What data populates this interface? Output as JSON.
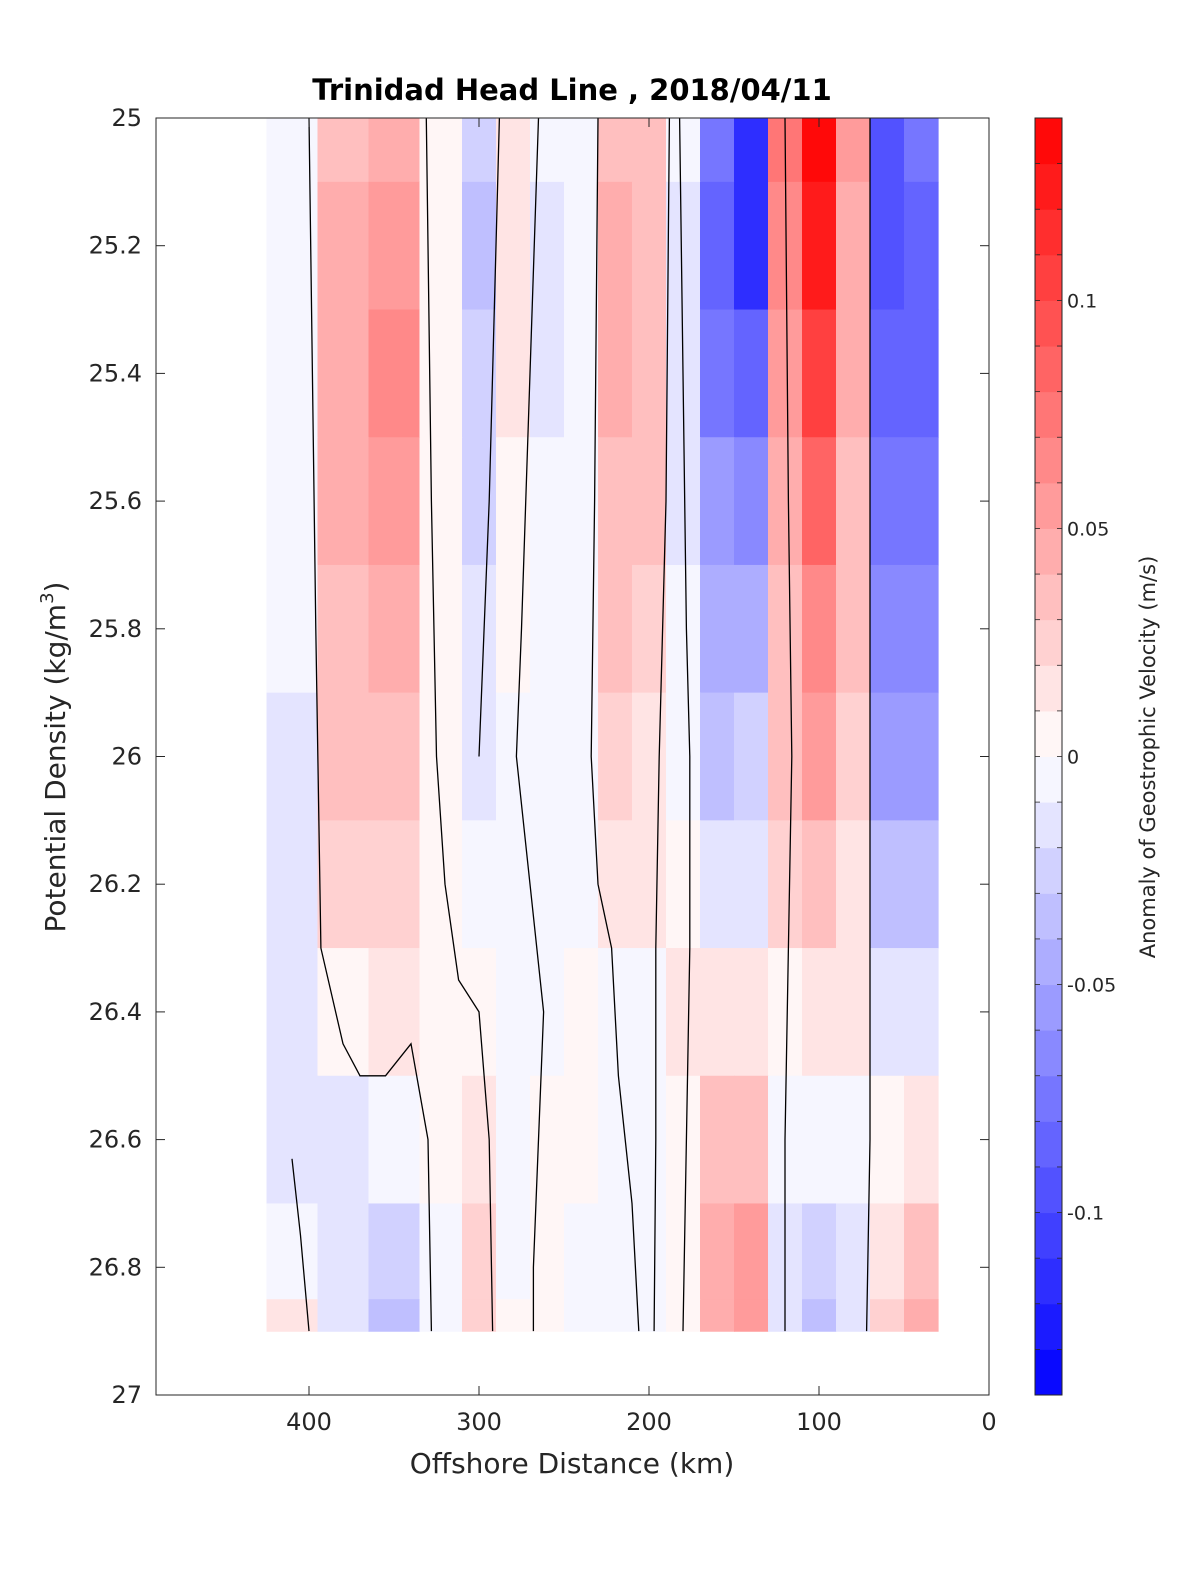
{
  "chart_data": {
    "type": "heatmap",
    "title": "Trinidad Head Line , 2018/04/11",
    "xlabel": "Offshore Distance (km)",
    "ylabel": "Potential Density (kg/m",
    "ylabel_superscript": "3",
    "ylabel_suffix": ")",
    "colorbar_label": "Anomaly of Geostrophic Velocity (m/s)",
    "xlim": [
      490,
      0
    ],
    "ylim": [
      25,
      27
    ],
    "x_ticks": [
      400,
      300,
      200,
      100,
      0
    ],
    "x_tick_labels": [
      "400",
      "300",
      "200",
      "100",
      "0"
    ],
    "y_ticks": [
      25,
      25.2,
      25.4,
      25.6,
      25.8,
      26,
      26.2,
      26.4,
      26.6,
      26.8,
      27
    ],
    "y_tick_labels": [
      "25",
      "25.2",
      "25.4",
      "25.6",
      "25.8",
      "26",
      "26.2",
      "26.4",
      "26.6",
      "26.8",
      "27"
    ],
    "color_range": [
      -0.14,
      0.14
    ],
    "colorbar_ticks": [
      0.1,
      0.05,
      0,
      -0.05,
      -0.1
    ],
    "colorbar_tick_labels": [
      "0.1",
      "0.05",
      "0",
      "-0.05",
      "-0.1"
    ],
    "color_levels": 28,
    "colormap": "blue-white-red",
    "color_positive": "#ff0000",
    "color_negative": "#0000ff",
    "zero_contour_color": "#000000",
    "grid": false,
    "distance_km": [
      410,
      380,
      350,
      320,
      300,
      280,
      260,
      240,
      220,
      200,
      180,
      160,
      140,
      120,
      100,
      80,
      60,
      40
    ],
    "density_levels": [
      25.0,
      25.2,
      25.4,
      25.6,
      25.8,
      26.0,
      26.2,
      26.4,
      26.6,
      26.8,
      26.9
    ],
    "velocity_anomaly_m_s": [
      [
        -0.005,
        0.035,
        0.045,
        0.0,
        -0.03,
        0.015,
        -0.01,
        -0.005,
        0.035,
        0.03,
        -0.01,
        -0.08,
        -0.12,
        0.07,
        0.13,
        0.05,
        -0.1,
        -0.08
      ],
      [
        -0.008,
        0.04,
        0.055,
        0.0,
        -0.035,
        0.015,
        -0.012,
        -0.005,
        0.04,
        0.035,
        -0.015,
        -0.09,
        -0.115,
        0.06,
        0.12,
        0.045,
        -0.095,
        -0.09
      ],
      [
        -0.01,
        0.045,
        0.06,
        0.0,
        -0.03,
        0.01,
        -0.012,
        -0.005,
        0.04,
        0.035,
        -0.02,
        -0.08,
        -0.09,
        0.05,
        0.1,
        0.04,
        -0.085,
        -0.085
      ],
      [
        -0.01,
        0.04,
        0.055,
        0.0,
        -0.025,
        0.005,
        -0.01,
        -0.005,
        0.035,
        0.03,
        -0.015,
        -0.06,
        -0.065,
        0.04,
        0.08,
        0.035,
        -0.075,
        -0.075
      ],
      [
        -0.01,
        0.035,
        0.045,
        0.0,
        -0.02,
        0.0,
        -0.01,
        -0.005,
        0.03,
        0.025,
        -0.01,
        -0.045,
        -0.045,
        0.035,
        0.065,
        0.03,
        -0.065,
        -0.065
      ],
      [
        -0.012,
        0.03,
        0.035,
        0.0,
        -0.012,
        -0.005,
        -0.01,
        -0.005,
        0.025,
        0.018,
        -0.005,
        -0.035,
        -0.03,
        0.03,
        0.05,
        0.025,
        -0.055,
        -0.055
      ],
      [
        -0.012,
        0.02,
        0.025,
        0.0,
        -0.005,
        -0.005,
        -0.005,
        -0.003,
        0.015,
        0.01,
        0.0,
        -0.02,
        -0.015,
        0.02,
        0.035,
        0.015,
        -0.04,
        -0.04
      ],
      [
        -0.012,
        0.008,
        0.01,
        0.0,
        0.005,
        -0.005,
        -0.003,
        0.0,
        -0.005,
        -0.005,
        0.01,
        0.015,
        0.01,
        0.005,
        0.012,
        0.01,
        -0.02,
        -0.02
      ],
      [
        -0.015,
        -0.012,
        -0.01,
        0.0,
        0.01,
        -0.008,
        0.0,
        0.0,
        -0.01,
        -0.01,
        0.005,
        0.03,
        0.03,
        -0.01,
        -0.01,
        -0.005,
        0.0,
        0.012
      ],
      [
        -0.008,
        -0.02,
        -0.03,
        -0.005,
        0.02,
        -0.005,
        0.0,
        -0.005,
        -0.01,
        -0.008,
        0.005,
        0.04,
        0.05,
        -0.015,
        -0.03,
        -0.015,
        0.015,
        0.03
      ],
      [
        0.01,
        -0.02,
        -0.04,
        -0.005,
        0.025,
        0.0,
        0.0,
        -0.008,
        -0.01,
        -0.005,
        0.005,
        0.045,
        0.055,
        -0.015,
        -0.04,
        -0.015,
        0.02,
        0.045
      ]
    ],
    "zero_contours": [
      [
        [
          400,
          25.0
        ],
        [
          396,
          25.8
        ],
        [
          393,
          26.3
        ],
        [
          380,
          26.45
        ],
        [
          370,
          26.5
        ],
        [
          355,
          26.5
        ],
        [
          340,
          26.45
        ],
        [
          330,
          26.6
        ],
        [
          328,
          26.9
        ]
      ],
      [
        [
          331,
          25.0
        ],
        [
          328,
          25.6
        ],
        [
          325,
          26.0
        ],
        [
          320,
          26.2
        ],
        [
          312,
          26.35
        ],
        [
          300,
          26.4
        ],
        [
          294,
          26.6
        ],
        [
          292,
          26.9
        ]
      ],
      [
        [
          288,
          25.0
        ],
        [
          294,
          25.6
        ],
        [
          300,
          26.0
        ]
      ],
      [
        [
          265,
          25.0
        ],
        [
          270,
          25.4
        ],
        [
          275,
          25.8
        ],
        [
          278,
          26.0
        ],
        [
          270,
          26.2
        ],
        [
          262,
          26.4
        ],
        [
          265,
          26.6
        ],
        [
          268,
          26.8
        ],
        [
          268,
          26.9
        ]
      ],
      [
        [
          230,
          25.0
        ],
        [
          232,
          25.6
        ],
        [
          234,
          26.0
        ],
        [
          230,
          26.2
        ],
        [
          222,
          26.3
        ],
        [
          218,
          26.5
        ],
        [
          210,
          26.7
        ],
        [
          206,
          26.9
        ]
      ],
      [
        [
          188,
          25.0
        ],
        [
          190,
          25.6
        ],
        [
          192,
          25.8
        ],
        [
          194,
          26.0
        ],
        [
          196,
          26.3
        ],
        [
          196,
          26.6
        ],
        [
          197,
          26.9
        ]
      ],
      [
        [
          182,
          25.0
        ],
        [
          180,
          25.4
        ],
        [
          178,
          25.8
        ],
        [
          176,
          26.0
        ],
        [
          176,
          26.3
        ],
        [
          178,
          26.6
        ],
        [
          180,
          26.9
        ]
      ],
      [
        [
          120,
          25.0
        ],
        [
          118,
          25.6
        ],
        [
          116,
          26.0
        ],
        [
          118,
          26.3
        ],
        [
          120,
          26.6
        ],
        [
          120,
          26.9
        ]
      ],
      [
        [
          70,
          25.0
        ],
        [
          70,
          25.6
        ],
        [
          70,
          26.0
        ],
        [
          70,
          26.4
        ],
        [
          70,
          26.6
        ],
        [
          72,
          26.9
        ]
      ],
      [
        [
          410,
          26.63
        ],
        [
          405,
          26.75
        ],
        [
          400,
          26.9
        ]
      ]
    ]
  }
}
